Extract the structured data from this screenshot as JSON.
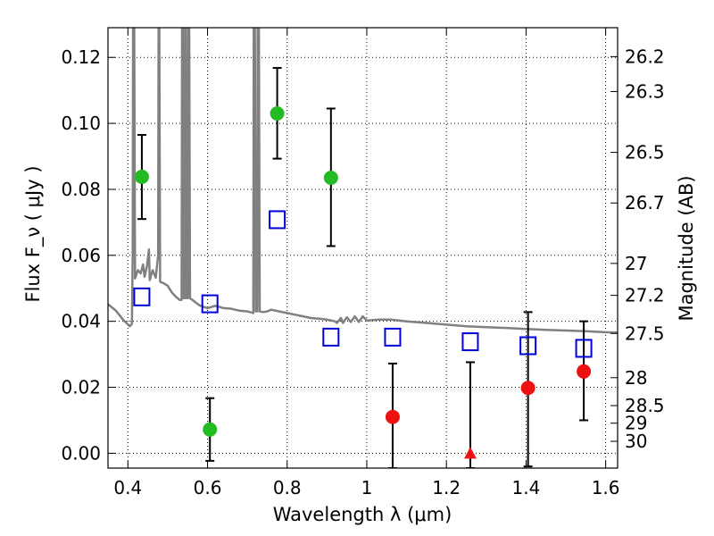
{
  "chart_data": {
    "type": "scatter",
    "xlabel": "Wavelength  λ (μm)",
    "ylabel": "Flux  F_ν  ( μJy )",
    "ylabel_right": "Magnitude (AB)",
    "xlim": [
      0.35,
      1.63
    ],
    "ylim": [
      -0.0045,
      0.129
    ],
    "grid": true,
    "x_ticks": [
      {
        "value": 0.4,
        "label": "0.4"
      },
      {
        "value": 0.6,
        "label": "0.6"
      },
      {
        "value": 0.8,
        "label": "0.8"
      },
      {
        "value": 1.0,
        "label": "1"
      },
      {
        "value": 1.2,
        "label": "1.2"
      },
      {
        "value": 1.4,
        "label": "1.4"
      },
      {
        "value": 1.6,
        "label": "1.6"
      }
    ],
    "y_ticks": [
      {
        "value": 0.0,
        "label": "0.00"
      },
      {
        "value": 0.02,
        "label": "0.02"
      },
      {
        "value": 0.04,
        "label": "0.04"
      },
      {
        "value": 0.06,
        "label": "0.06"
      },
      {
        "value": 0.08,
        "label": "0.08"
      },
      {
        "value": 0.1,
        "label": "0.10"
      },
      {
        "value": 0.12,
        "label": "0.12"
      }
    ],
    "mag_ticks": [
      {
        "label": "26.2",
        "value": 26.2
      },
      {
        "label": "26.3",
        "value": 26.3
      },
      {
        "label": "26.5",
        "value": 26.5
      },
      {
        "label": "26.7",
        "value": 26.7
      },
      {
        "label": "27",
        "value": 27
      },
      {
        "label": "27.2",
        "value": 27.2
      },
      {
        "label": "27.5",
        "value": 27.5
      },
      {
        "label": "28",
        "value": 28
      },
      {
        "label": "28.5",
        "value": 28.5
      },
      {
        "label": "29",
        "value": 29
      },
      {
        "label": "30",
        "value": 30
      }
    ],
    "series": [
      {
        "marker": "circle",
        "color": "#22bb22",
        "points": [
          {
            "x": 0.435,
            "y": 0.0838,
            "yerr_low": 0.071,
            "yerr_high": 0.0965
          },
          {
            "x": 0.606,
            "y": 0.0072,
            "yerr_low": -0.0023,
            "yerr_high": 0.0167
          },
          {
            "x": 0.775,
            "y": 0.103,
            "yerr_low": 0.0893,
            "yerr_high": 0.1168
          },
          {
            "x": 0.91,
            "y": 0.0835,
            "yerr_low": 0.0628,
            "yerr_high": 0.1045
          }
        ]
      },
      {
        "marker": "circle",
        "color": "#ee1111",
        "points": [
          {
            "x": 1.065,
            "y": 0.011,
            "yerr_low": -0.0045,
            "yerr_high": 0.0272
          },
          {
            "x": 1.405,
            "y": 0.0198,
            "yerr_low": -0.004,
            "yerr_high": 0.0428
          },
          {
            "x": 1.545,
            "y": 0.0248,
            "yerr_low": 0.01,
            "yerr_high": 0.04
          }
        ]
      },
      {
        "marker": "triangle",
        "color": "#ee1111",
        "points": [
          {
            "x": 1.26,
            "y": 0.0,
            "yerr_low": -0.0045,
            "yerr_high": 0.0276
          }
        ]
      },
      {
        "marker": "open-square",
        "color": "#0000dd",
        "points": [
          {
            "x": 0.435,
            "y": 0.0474
          },
          {
            "x": 0.606,
            "y": 0.0453
          },
          {
            "x": 0.775,
            "y": 0.0708
          },
          {
            "x": 0.91,
            "y": 0.0352
          },
          {
            "x": 1.065,
            "y": 0.0352
          },
          {
            "x": 1.26,
            "y": 0.0338
          },
          {
            "x": 1.405,
            "y": 0.0326
          },
          {
            "x": 1.545,
            "y": 0.0318
          }
        ]
      }
    ],
    "sed_model": {
      "color": "#808080",
      "points": [
        [
          0.35,
          0.0452
        ],
        [
          0.37,
          0.0432
        ],
        [
          0.39,
          0.0402
        ],
        [
          0.405,
          0.0385
        ],
        [
          0.41,
          0.0392
        ],
        [
          0.412,
          0.06
        ],
        [
          0.413,
          0.129
        ],
        [
          0.416,
          0.129
        ],
        [
          0.418,
          0.053
        ],
        [
          0.425,
          0.0555
        ],
        [
          0.432,
          0.0545
        ],
        [
          0.438,
          0.0572
        ],
        [
          0.442,
          0.0535
        ],
        [
          0.448,
          0.0568
        ],
        [
          0.453,
          0.0618
        ],
        [
          0.455,
          0.0525
        ],
        [
          0.462,
          0.0555
        ],
        [
          0.47,
          0.0532
        ],
        [
          0.476,
          0.06
        ],
        [
          0.477,
          0.129
        ],
        [
          0.479,
          0.129
        ],
        [
          0.481,
          0.052
        ],
        [
          0.49,
          0.0515
        ],
        [
          0.5,
          0.0508
        ],
        [
          0.51,
          0.0488
        ],
        [
          0.52,
          0.0475
        ],
        [
          0.53,
          0.0465
        ],
        [
          0.535,
          0.0465
        ],
        [
          0.536,
          0.129
        ],
        [
          0.538,
          0.129
        ],
        [
          0.54,
          0.047
        ],
        [
          0.543,
          0.047
        ],
        [
          0.544,
          0.129
        ],
        [
          0.546,
          0.129
        ],
        [
          0.548,
          0.047
        ],
        [
          0.551,
          0.047
        ],
        [
          0.552,
          0.129
        ],
        [
          0.554,
          0.129
        ],
        [
          0.556,
          0.047
        ],
        [
          0.58,
          0.0448
        ],
        [
          0.6,
          0.044
        ],
        [
          0.62,
          0.0447
        ],
        [
          0.64,
          0.044
        ],
        [
          0.66,
          0.0438
        ],
        [
          0.68,
          0.0432
        ],
        [
          0.7,
          0.043
        ],
        [
          0.715,
          0.0425
        ],
        [
          0.716,
          0.129
        ],
        [
          0.719,
          0.129
        ],
        [
          0.721,
          0.043
        ],
        [
          0.725,
          0.043
        ],
        [
          0.726,
          0.129
        ],
        [
          0.729,
          0.129
        ],
        [
          0.731,
          0.043
        ],
        [
          0.74,
          0.0428
        ],
        [
          0.75,
          0.043
        ],
        [
          0.76,
          0.0435
        ],
        [
          0.78,
          0.043
        ],
        [
          0.8,
          0.0425
        ],
        [
          0.82,
          0.042
        ],
        [
          0.84,
          0.0415
        ],
        [
          0.86,
          0.041
        ],
        [
          0.88,
          0.0408
        ],
        [
          0.9,
          0.0405
        ],
        [
          0.92,
          0.04
        ],
        [
          0.925,
          0.0395
        ],
        [
          0.935,
          0.041
        ],
        [
          0.94,
          0.0395
        ],
        [
          0.95,
          0.0412
        ],
        [
          0.96,
          0.0398
        ],
        [
          0.97,
          0.0415
        ],
        [
          0.98,
          0.0398
        ],
        [
          0.99,
          0.0415
        ],
        [
          1.0,
          0.0402
        ],
        [
          1.03,
          0.0405
        ],
        [
          1.06,
          0.0405
        ],
        [
          1.1,
          0.04
        ],
        [
          1.15,
          0.0395
        ],
        [
          1.2,
          0.039
        ],
        [
          1.25,
          0.0385
        ],
        [
          1.3,
          0.0382
        ],
        [
          1.35,
          0.038
        ],
        [
          1.4,
          0.0377
        ],
        [
          1.45,
          0.0374
        ],
        [
          1.5,
          0.0372
        ],
        [
          1.55,
          0.037
        ],
        [
          1.6,
          0.0367
        ],
        [
          1.63,
          0.0366
        ]
      ]
    }
  }
}
